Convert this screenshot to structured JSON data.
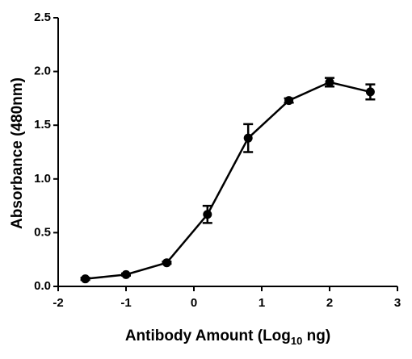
{
  "chart_data": {
    "type": "line",
    "x_label": [
      "Antibody Amount (Log",
      "10",
      " ng)"
    ],
    "y_label": "Absorbance (480nm)",
    "x": [
      -1.6,
      -1.0,
      -0.4,
      0.2,
      0.8,
      1.4,
      2.0,
      2.6
    ],
    "values": [
      0.07,
      0.11,
      0.22,
      0.67,
      1.38,
      1.73,
      1.9,
      1.81
    ],
    "errors": [
      0.01,
      0.01,
      0.01,
      0.08,
      0.13,
      0.02,
      0.04,
      0.07
    ],
    "color": "#000000",
    "xlim": [
      -2,
      3
    ],
    "xticks": [
      -2,
      -1,
      0,
      1,
      2,
      3
    ],
    "ylim": [
      0,
      2.5
    ],
    "yticks": [
      {
        "value": 0,
        "label": "0.0"
      },
      0.5,
      {
        "value": 1,
        "label": "1.0"
      },
      1.5,
      {
        "value": 2,
        "label": "2.0"
      },
      2.5
    ],
    "grid": false
  }
}
